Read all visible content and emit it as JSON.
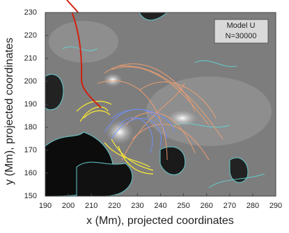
{
  "chart_data": {
    "type": "image",
    "xlabel": "x (Mm), projected coordinates",
    "ylabel": "y (Mm), projected coordinates",
    "xlim": [
      190,
      290
    ],
    "ylim": [
      150,
      230
    ],
    "xticks": [
      190,
      200,
      210,
      220,
      230,
      240,
      250,
      260,
      270,
      280,
      290
    ],
    "yticks": [
      150,
      160,
      170,
      180,
      190,
      200,
      210,
      220,
      230
    ],
    "annotation": [
      "Model U",
      "N=30000"
    ]
  }
}
